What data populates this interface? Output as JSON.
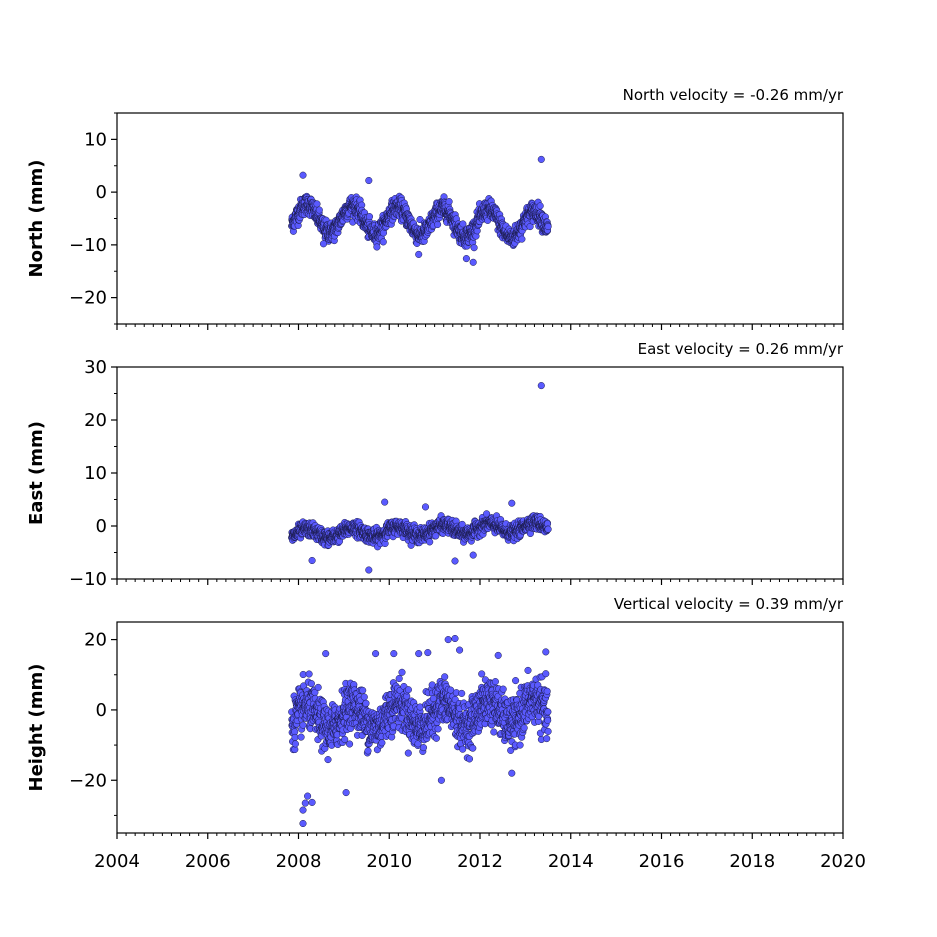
{
  "colors": {
    "marker_fill": "#5a5aff",
    "marker_edge": "#1a1a4a",
    "axes": "#000000"
  },
  "chart_data": [
    {
      "type": "scatter",
      "id": "north",
      "ylabel": "North (mm)",
      "annotation": "North velocity = -0.26 mm/yr",
      "xlim": [
        2004,
        2020
      ],
      "ylim": [
        -25,
        15
      ],
      "yticks": [
        -20,
        -10,
        0,
        10
      ],
      "ytick_labels": [
        "−20",
        "−10",
        "0",
        "10"
      ],
      "xtick_labels_visible": false,
      "series": [
        {
          "seasonal": {
            "t_start": 2007.85,
            "t_end": 2013.5,
            "offset": -4.8,
            "trend": -0.26,
            "amplitude": 2.6,
            "noise": 1.5
          },
          "x": [
            2008.1,
            2009.55,
            2011.7,
            2011.85,
            2013.35,
            2010.65,
            2008.55
          ],
          "y": [
            3.2,
            2.2,
            -12.6,
            -13.3,
            6.2,
            -11.8,
            -9.8
          ]
        }
      ]
    },
    {
      "type": "scatter",
      "id": "east",
      "ylabel": "East (mm)",
      "annotation": "East velocity = 0.26 mm/yr",
      "xlim": [
        2004,
        2020
      ],
      "ylim": [
        -10,
        30
      ],
      "yticks": [
        -10,
        0,
        10,
        20,
        30
      ],
      "ytick_labels": [
        "−10",
        "0",
        "10",
        "20",
        "30"
      ],
      "xtick_labels_visible": false,
      "series": [
        {
          "seasonal": {
            "t_start": 2007.85,
            "t_end": 2013.5,
            "offset": -1.6,
            "trend": 0.26,
            "amplitude": 0.9,
            "noise": 1.1
          },
          "x": [
            2013.35,
            2009.9,
            2009.55,
            2011.45,
            2008.3,
            2010.8,
            2012.7,
            2011.85
          ],
          "y": [
            26.5,
            4.5,
            -8.3,
            -6.6,
            -6.5,
            3.6,
            4.3,
            -5.5
          ]
        }
      ]
    },
    {
      "type": "scatter",
      "id": "height",
      "ylabel": "Height (mm)",
      "annotation": "Vertical velocity = 0.39 mm/yr",
      "xlim": [
        2004,
        2020
      ],
      "ylim": [
        -35,
        25
      ],
      "yticks": [
        -20,
        0,
        20
      ],
      "ytick_labels": [
        "−20",
        "0",
        "20"
      ],
      "xticks": [
        2004,
        2006,
        2008,
        2010,
        2012,
        2014,
        2016,
        2018,
        2020
      ],
      "xtick_labels": [
        "2004",
        "2006",
        "2008",
        "2010",
        "2012",
        "2014",
        "2016",
        "2018",
        "2020"
      ],
      "xtick_labels_visible": true,
      "series": [
        {
          "seasonal": {
            "t_start": 2007.85,
            "t_end": 2013.5,
            "offset": -2.5,
            "trend": 0.39,
            "amplitude": 3.5,
            "noise": 5.5
          },
          "x": [
            2008.1,
            2008.1,
            2008.15,
            2008.2,
            2008.3,
            2011.3,
            2011.45,
            2011.55,
            2012.4,
            2013.45,
            2009.7,
            2010.1,
            2010.65,
            2010.85,
            2008.6,
            2009.05,
            2012.7,
            2011.15
          ],
          "y": [
            -32.3,
            -28.5,
            -26.5,
            -24.5,
            -26.3,
            20.0,
            20.3,
            17.0,
            15.5,
            16.5,
            16.0,
            16.0,
            16.0,
            16.3,
            16.0,
            -23.5,
            -18.0,
            -20.0
          ]
        }
      ]
    }
  ]
}
